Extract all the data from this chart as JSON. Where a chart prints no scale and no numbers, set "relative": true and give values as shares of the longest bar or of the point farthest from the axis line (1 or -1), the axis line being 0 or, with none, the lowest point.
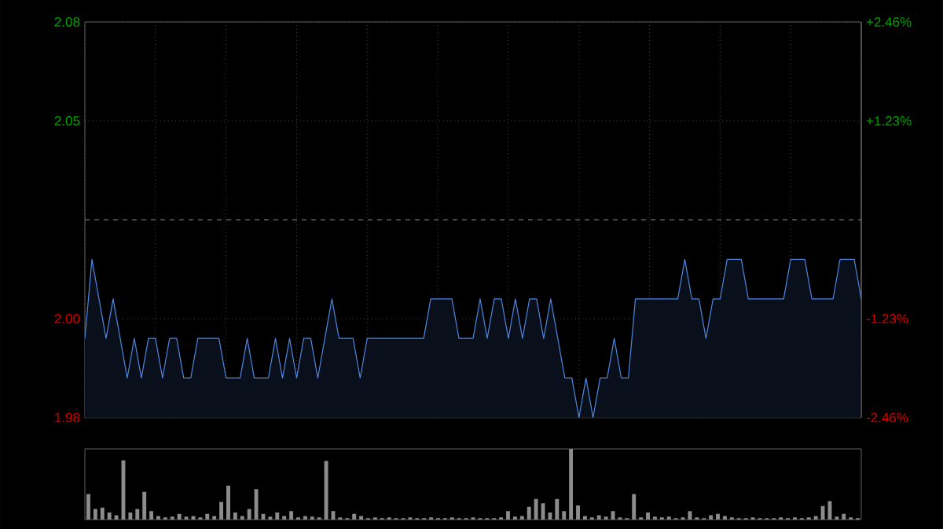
{
  "chart_data": [
    {
      "type": "area",
      "categories": [
        null,
        null,
        null,
        null,
        null,
        null,
        null,
        null,
        null,
        null,
        null,
        null,
        null,
        null,
        null,
        null,
        null,
        null,
        null,
        null,
        null,
        null,
        null,
        null,
        null,
        null,
        null,
        null,
        null,
        null,
        null,
        null,
        null,
        null,
        null,
        null,
        null,
        null,
        null,
        null,
        null,
        null,
        null,
        null,
        null,
        null,
        null,
        null,
        null,
        null,
        null,
        null,
        null,
        null,
        null,
        null,
        null,
        null,
        null,
        null,
        null,
        null,
        null,
        null,
        null,
        null,
        null,
        null,
        null,
        null,
        null,
        null,
        null,
        null,
        null,
        null,
        null,
        null,
        null,
        null,
        null,
        null,
        null,
        null,
        null,
        null,
        null,
        null,
        null,
        null,
        null,
        null,
        null,
        null,
        null,
        null,
        null,
        null,
        null,
        null,
        null,
        null,
        null,
        null,
        null,
        null,
        null,
        null,
        null,
        null,
        null
      ],
      "series": [
        {
          "color": "#4f86e0",
          "values": [
            2.0,
            2.02,
            2.01,
            2.0,
            2.01,
            2.0,
            1.99,
            2.0,
            1.99,
            2.0,
            2.0,
            1.99,
            2.0,
            2.0,
            1.99,
            1.99,
            2.0,
            2.0,
            2.0,
            2.0,
            1.99,
            1.99,
            1.99,
            2.0,
            1.99,
            1.99,
            1.99,
            2.0,
            1.99,
            2.0,
            1.99,
            2.0,
            2.0,
            1.99,
            2.0,
            2.01,
            2.0,
            2.0,
            2.0,
            1.99,
            2.0,
            2.0,
            2.0,
            2.0,
            2.0,
            2.0,
            2.0,
            2.0,
            2.0,
            2.01,
            2.01,
            2.01,
            2.01,
            2.0,
            2.0,
            2.0,
            2.01,
            2.0,
            2.01,
            2.01,
            2.0,
            2.01,
            2.0,
            2.01,
            2.01,
            2.0,
            2.01,
            2.0,
            1.99,
            1.99,
            1.98,
            1.99,
            1.98,
            1.99,
            1.99,
            2.0,
            1.99,
            1.99,
            2.01,
            2.01,
            2.01,
            2.01,
            2.01,
            2.01,
            2.01,
            2.02,
            2.01,
            2.01,
            2.0,
            2.01,
            2.01,
            2.02,
            2.02,
            2.02,
            2.01,
            2.01,
            2.01,
            2.01,
            2.01,
            2.01,
            2.02,
            2.02,
            2.02,
            2.01,
            2.01,
            2.01,
            2.01,
            2.02,
            2.02,
            2.02,
            2.01
          ]
        }
      ],
      "ylim": [
        1.98,
        2.08
      ],
      "yticks": [
        1.98,
        {
          "value": 2.005,
          "label": "2.00"
        },
        {
          "value": 2.055,
          "label": "2.05"
        },
        2.08
      ],
      "y2lim": [
        -2.46,
        2.46
      ],
      "y2ticks": [
        {
          "value": -2.46,
          "label": "-2.46%"
        },
        {
          "value": -1.23,
          "label": "-1.23%"
        },
        {
          "value": 1.23,
          "label": "+1.23%"
        },
        {
          "value": 2.46,
          "label": "+2.46%"
        }
      ],
      "ref_lines": [
        {
          "axis": "y",
          "value": 2.03,
          "line_style": "dashed"
        }
      ],
      "grid": true,
      "tick_labels": "y"
    },
    {
      "type": "bar",
      "relative": true,
      "color": "#8c8c8c",
      "tick_labels": false,
      "categories": [
        null,
        null,
        null,
        null,
        null,
        null,
        null,
        null,
        null,
        null,
        null,
        null,
        null,
        null,
        null,
        null,
        null,
        null,
        null,
        null,
        null,
        null,
        null,
        null,
        null,
        null,
        null,
        null,
        null,
        null,
        null,
        null,
        null,
        null,
        null,
        null,
        null,
        null,
        null,
        null,
        null,
        null,
        null,
        null,
        null,
        null,
        null,
        null,
        null,
        null,
        null,
        null,
        null,
        null,
        null,
        null,
        null,
        null,
        null,
        null,
        null,
        null,
        null,
        null,
        null,
        null,
        null,
        null,
        null,
        null,
        null,
        null,
        null,
        null,
        null,
        null,
        null,
        null,
        null,
        null,
        null,
        null,
        null,
        null,
        null,
        null,
        null,
        null,
        null,
        null,
        null,
        null,
        null,
        null,
        null,
        null,
        null,
        null,
        null,
        null,
        null,
        null,
        null,
        null,
        null,
        null,
        null,
        null,
        null,
        null,
        null
      ],
      "values": [
        0.36,
        0.15,
        0.17,
        0.1,
        0.06,
        0.84,
        0.1,
        0.15,
        0.39,
        0.12,
        0.05,
        0.03,
        0.04,
        0.08,
        0.04,
        0.05,
        0.03,
        0.08,
        0.05,
        0.25,
        0.48,
        0.1,
        0.05,
        0.15,
        0.43,
        0.08,
        0.04,
        0.1,
        0.05,
        0.12,
        0.03,
        0.05,
        0.04,
        0.03,
        0.83,
        0.12,
        0.03,
        0.02,
        0.08,
        0.05,
        0.02,
        0.03,
        0.02,
        0.03,
        0.02,
        0.02,
        0.03,
        0.02,
        0.02,
        0.03,
        0.02,
        0.02,
        0.03,
        0.02,
        0.02,
        0.03,
        0.02,
        0.02,
        0.02,
        0.03,
        0.12,
        0.04,
        0.05,
        0.18,
        0.29,
        0.23,
        0.1,
        0.29,
        0.12,
        1,
        0.2,
        0.05,
        0.03,
        0.06,
        0.04,
        0.12,
        0.03,
        0.02,
        0.36,
        0.03,
        0.1,
        0.04,
        0.03,
        0.04,
        0.02,
        0.03,
        0.12,
        0.03,
        0.02,
        0.06,
        0.08,
        0.05,
        0.03,
        0.02,
        0.02,
        0.03,
        0.02,
        0.02,
        0.02,
        0.03,
        0.02,
        0.03,
        0.02,
        0.03,
        0.05,
        0.19,
        0.26,
        0.04,
        0.08,
        0.03,
        0.02
      ]
    }
  ]
}
